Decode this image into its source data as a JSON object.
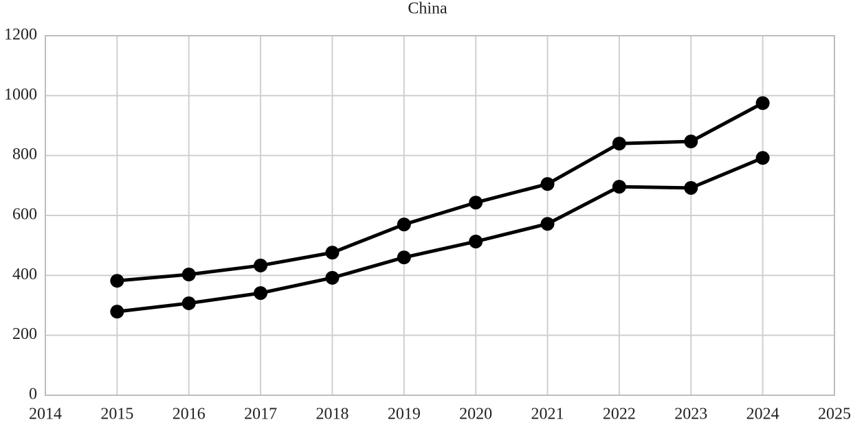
{
  "chart_data": {
    "type": "line",
    "title": "China",
    "x": [
      2015,
      2016,
      2017,
      2018,
      2019,
      2020,
      2021,
      2022,
      2023,
      2024
    ],
    "series": [
      {
        "color": "#000000",
        "values": [
          382,
          403,
          433,
          476,
          570,
          643,
          705,
          840,
          847,
          975
        ]
      },
      {
        "color": "#000000",
        "values": [
          279,
          307,
          341,
          392,
          460,
          513,
          572,
          696,
          692,
          792
        ]
      }
    ],
    "xlim": [
      2014,
      2025
    ],
    "xticks": [
      2014,
      2015,
      2016,
      2017,
      2018,
      2019,
      2020,
      2021,
      2022,
      2023,
      2024,
      2025
    ],
    "ylim": [
      0,
      1200
    ],
    "yticks": [
      0,
      200,
      400,
      600,
      800,
      1000,
      1200
    ],
    "grid": true
  }
}
